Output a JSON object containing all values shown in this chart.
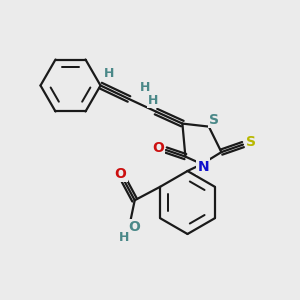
{
  "bg_color": "#ebebeb",
  "bond_color": "#1a1a1a",
  "bond_width": 1.6,
  "atom_colors": {
    "S_yellow": "#b8b800",
    "S_teal": "#4a8888",
    "N": "#1010cc",
    "O_red": "#cc1010",
    "O_teal": "#4a8888",
    "H_teal": "#4a8888",
    "C": "#1a1a1a"
  },
  "figsize": [
    3.0,
    3.0
  ],
  "dpi": 100,
  "xlim": [
    0,
    10
  ],
  "ylim": [
    0,
    10
  ]
}
